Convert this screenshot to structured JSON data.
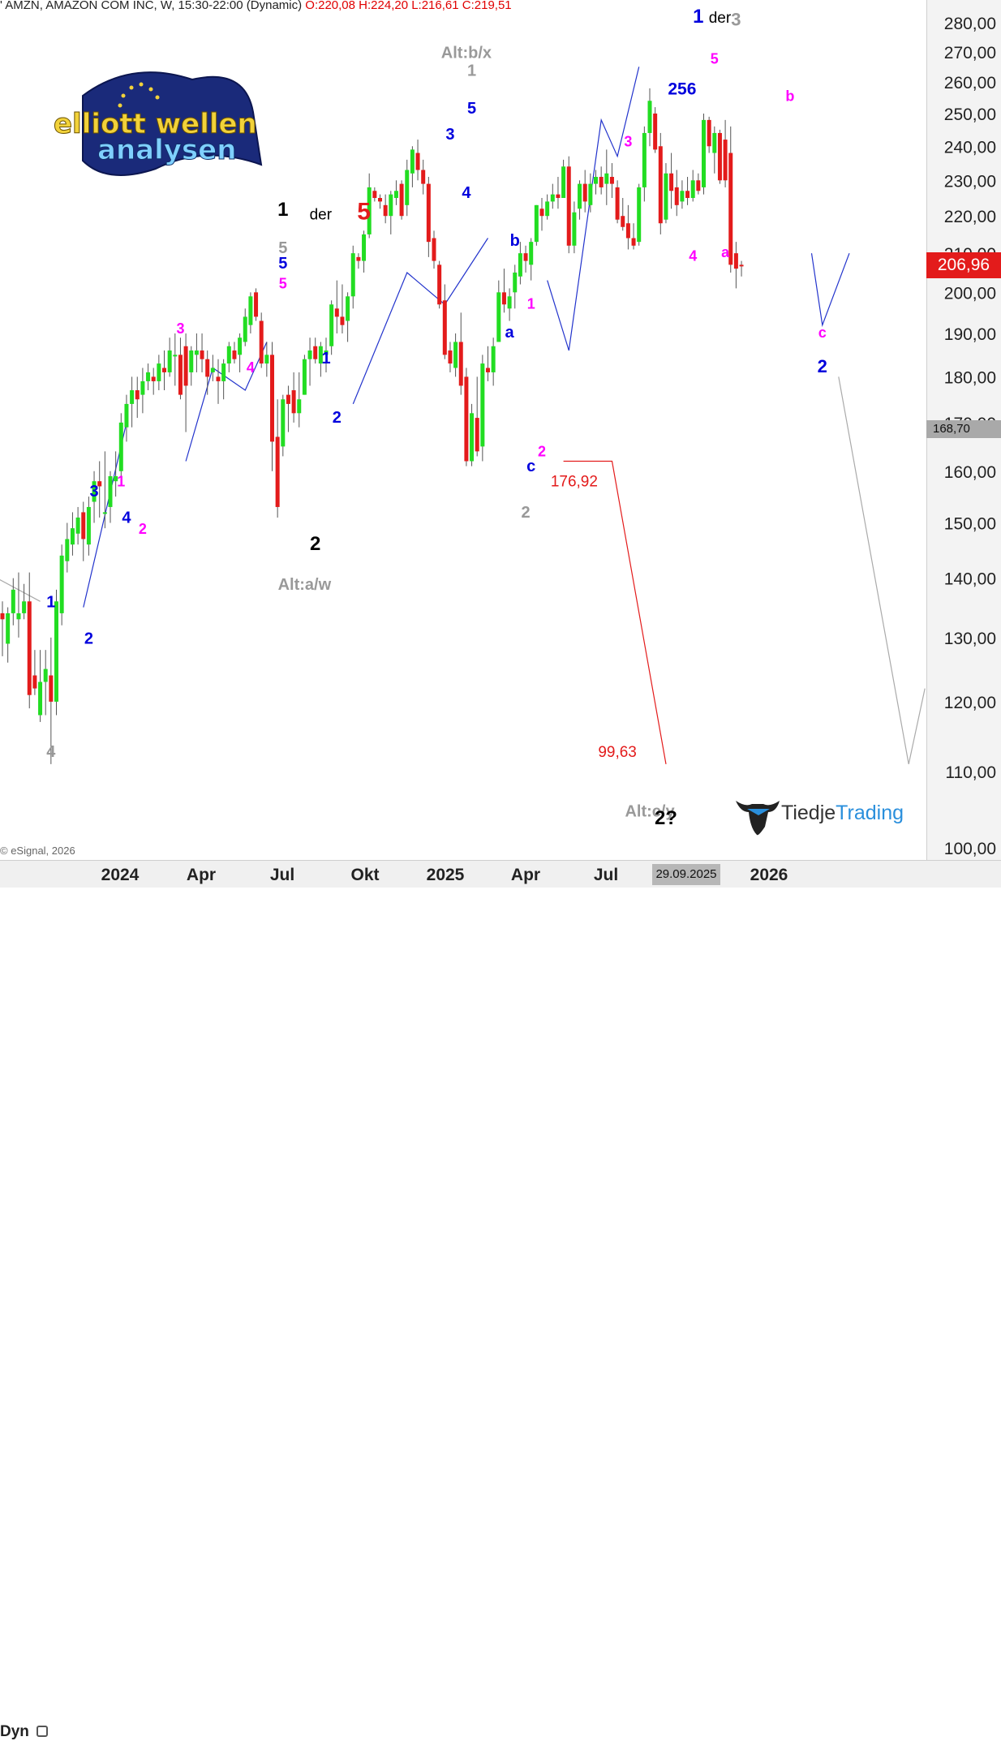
{
  "header": {
    "symbol_text": "' AMZN, AMAZON COM INC, W, 15:30-22:00 (Dynamic)",
    "ohlc_text": "O:220,08 H:224,20 L:216,61 C:219,51"
  },
  "copyright": "© eSignal, 2026",
  "time_panel": {
    "label": "Dyn"
  },
  "price_badge": "206,96",
  "grey_badge": "168,70",
  "date_badge": "29.09.2025",
  "logo_ew": {
    "line1": "elliott wellen",
    "line2": "analysen"
  },
  "logo_tt": {
    "part1": "Tiedje",
    "part2": "Trading"
  },
  "colors": {
    "up": "#22dd22",
    "down": "#e31b1b",
    "wick": "#555555",
    "blue": "#0000dd",
    "magenta": "#ff00ff",
    "grey": "#999999",
    "black": "#000000",
    "red": "#e31b1b",
    "path_blue": "#2233cc",
    "path_red": "#e31b1b",
    "path_grey": "#aaaaaa"
  },
  "chart_data": {
    "type": "candlestick",
    "symbol": "AMZN",
    "timeframe": "W",
    "y_axis": {
      "scale": "log",
      "ylim": [
        100,
        285
      ],
      "ticks": [
        "280,00",
        "270,00",
        "260,00",
        "250,00",
        "240,00",
        "230,00",
        "220,00",
        "210,00",
        "200,00",
        "190,00",
        "180,00",
        "170,00",
        "160,00",
        "150,00",
        "140,00",
        "130,00",
        "120,00",
        "110,00",
        "100,00"
      ]
    },
    "x_axis": {
      "ticks": [
        "2024",
        "Apr",
        "Jul",
        "Okt",
        "2025",
        "Apr",
        "Jul",
        "2026"
      ]
    },
    "candles": [
      {
        "o": 134,
        "h": 136,
        "l": 127,
        "c": 133
      },
      {
        "o": 129,
        "h": 135,
        "l": 126,
        "c": 134
      },
      {
        "o": 134,
        "h": 140,
        "l": 132,
        "c": 138
      },
      {
        "o": 133,
        "h": 141,
        "l": 130,
        "c": 134
      },
      {
        "o": 134,
        "h": 139,
        "l": 133,
        "c": 136
      },
      {
        "o": 136,
        "h": 141,
        "l": 119,
        "c": 121
      },
      {
        "o": 124,
        "h": 128,
        "l": 121,
        "c": 122
      },
      {
        "o": 118,
        "h": 128,
        "l": 117,
        "c": 123
      },
      {
        "o": 123,
        "h": 128,
        "l": 118,
        "c": 125
      },
      {
        "o": 124,
        "h": 130,
        "l": 111,
        "c": 120
      },
      {
        "o": 120,
        "h": 138,
        "l": 118,
        "c": 136
      },
      {
        "o": 134,
        "h": 146,
        "l": 132,
        "c": 144
      },
      {
        "o": 143,
        "h": 150,
        "l": 141,
        "c": 147
      },
      {
        "o": 146,
        "h": 152,
        "l": 144,
        "c": 149
      },
      {
        "o": 148,
        "h": 153,
        "l": 146,
        "c": 151
      },
      {
        "o": 152,
        "h": 154,
        "l": 143,
        "c": 147
      },
      {
        "o": 146,
        "h": 155,
        "l": 144,
        "c": 153
      },
      {
        "o": 154,
        "h": 160,
        "l": 150,
        "c": 158
      },
      {
        "o": 158,
        "h": 162,
        "l": 151,
        "c": 157
      },
      {
        "o": 152,
        "h": 164,
        "l": 149,
        "c": 152
      },
      {
        "o": 153,
        "h": 160,
        "l": 150,
        "c": 159
      },
      {
        "o": 158,
        "h": 164,
        "l": 155,
        "c": 159
      },
      {
        "o": 160,
        "h": 172,
        "l": 157,
        "c": 170
      },
      {
        "o": 169,
        "h": 176,
        "l": 166,
        "c": 174
      },
      {
        "o": 174,
        "h": 180,
        "l": 169,
        "c": 177
      },
      {
        "o": 177,
        "h": 180,
        "l": 171,
        "c": 175
      },
      {
        "o": 176,
        "h": 182,
        "l": 172,
        "c": 179
      },
      {
        "o": 179,
        "h": 183,
        "l": 177,
        "c": 181
      },
      {
        "o": 180,
        "h": 182,
        "l": 176,
        "c": 179
      },
      {
        "o": 179,
        "h": 185,
        "l": 177,
        "c": 183
      },
      {
        "o": 182,
        "h": 186,
        "l": 177,
        "c": 181
      },
      {
        "o": 181,
        "h": 189,
        "l": 180,
        "c": 186
      },
      {
        "o": 185,
        "h": 190,
        "l": 178,
        "c": 185
      },
      {
        "o": 185,
        "h": 189,
        "l": 175,
        "c": 176
      },
      {
        "o": 187,
        "h": 190,
        "l": 168,
        "c": 178
      },
      {
        "o": 181,
        "h": 187,
        "l": 178,
        "c": 186
      },
      {
        "o": 185,
        "h": 190,
        "l": 181,
        "c": 186
      },
      {
        "o": 186,
        "h": 190,
        "l": 181,
        "c": 184
      },
      {
        "o": 184,
        "h": 186,
        "l": 176,
        "c": 180
      },
      {
        "o": 181,
        "h": 185,
        "l": 179,
        "c": 182
      },
      {
        "o": 180,
        "h": 184,
        "l": 174,
        "c": 179
      },
      {
        "o": 179,
        "h": 184,
        "l": 175,
        "c": 183
      },
      {
        "o": 183,
        "h": 188,
        "l": 181,
        "c": 187
      },
      {
        "o": 186,
        "h": 188,
        "l": 183,
        "c": 184
      },
      {
        "o": 185,
        "h": 190,
        "l": 181,
        "c": 189
      },
      {
        "o": 188,
        "h": 196,
        "l": 187,
        "c": 194
      },
      {
        "o": 192,
        "h": 200,
        "l": 190,
        "c": 199
      },
      {
        "o": 200,
        "h": 201,
        "l": 193,
        "c": 194
      },
      {
        "o": 193,
        "h": 195,
        "l": 182,
        "c": 183
      },
      {
        "o": 183,
        "h": 188,
        "l": 180,
        "c": 185
      },
      {
        "o": 185,
        "h": 188,
        "l": 160,
        "c": 166
      },
      {
        "o": 167,
        "h": 175,
        "l": 151,
        "c": 153
      },
      {
        "o": 165,
        "h": 176,
        "l": 163,
        "c": 175
      },
      {
        "o": 176,
        "h": 178,
        "l": 168,
        "c": 174
      },
      {
        "o": 177,
        "h": 181,
        "l": 170,
        "c": 172
      },
      {
        "o": 172,
        "h": 181,
        "l": 169,
        "c": 175
      },
      {
        "o": 176,
        "h": 185,
        "l": 176,
        "c": 184
      },
      {
        "o": 184,
        "h": 189,
        "l": 178,
        "c": 186
      },
      {
        "o": 187,
        "h": 189,
        "l": 183,
        "c": 184
      },
      {
        "o": 183,
        "h": 188,
        "l": 180,
        "c": 187
      },
      {
        "o": 185,
        "h": 189,
        "l": 181,
        "c": 186
      },
      {
        "o": 187,
        "h": 198,
        "l": 185,
        "c": 197
      },
      {
        "o": 196,
        "h": 203,
        "l": 190,
        "c": 194
      },
      {
        "o": 194,
        "h": 202,
        "l": 190,
        "c": 192
      },
      {
        "o": 193,
        "h": 200,
        "l": 188,
        "c": 199
      },
      {
        "o": 199,
        "h": 212,
        "l": 196,
        "c": 210
      },
      {
        "o": 209,
        "h": 210,
        "l": 206,
        "c": 208
      },
      {
        "o": 208,
        "h": 216,
        "l": 205,
        "c": 215
      },
      {
        "o": 215,
        "h": 232,
        "l": 214,
        "c": 228
      },
      {
        "o": 227,
        "h": 228,
        "l": 224,
        "c": 225
      },
      {
        "o": 225,
        "h": 226,
        "l": 222,
        "c": 224
      },
      {
        "o": 223,
        "h": 226,
        "l": 218,
        "c": 220
      },
      {
        "o": 220,
        "h": 227,
        "l": 215,
        "c": 226
      },
      {
        "o": 225,
        "h": 230,
        "l": 223,
        "c": 227
      },
      {
        "o": 229,
        "h": 230,
        "l": 219,
        "c": 220
      },
      {
        "o": 223,
        "h": 236,
        "l": 220,
        "c": 233
      },
      {
        "o": 232,
        "h": 240,
        "l": 228,
        "c": 239
      },
      {
        "o": 238,
        "h": 242,
        "l": 230,
        "c": 233
      },
      {
        "o": 233,
        "h": 236,
        "l": 226,
        "c": 229
      },
      {
        "o": 229,
        "h": 231,
        "l": 209,
        "c": 213
      },
      {
        "o": 214,
        "h": 216,
        "l": 206,
        "c": 208
      },
      {
        "o": 207,
        "h": 208,
        "l": 196,
        "c": 197
      },
      {
        "o": 198,
        "h": 202,
        "l": 184,
        "c": 185
      },
      {
        "o": 186,
        "h": 188,
        "l": 181,
        "c": 183
      },
      {
        "o": 182,
        "h": 190,
        "l": 180,
        "c": 188
      },
      {
        "o": 188,
        "h": 195,
        "l": 176,
        "c": 178
      },
      {
        "o": 180,
        "h": 182,
        "l": 161,
        "c": 162
      },
      {
        "o": 162,
        "h": 174,
        "l": 161,
        "c": 172
      },
      {
        "o": 171,
        "h": 180,
        "l": 163,
        "c": 164
      },
      {
        "o": 165,
        "h": 185,
        "l": 162,
        "c": 183
      },
      {
        "o": 182,
        "h": 187,
        "l": 179,
        "c": 181
      },
      {
        "o": 181,
        "h": 189,
        "l": 178,
        "c": 187
      },
      {
        "o": 188,
        "h": 203,
        "l": 188,
        "c": 200
      },
      {
        "o": 200,
        "h": 206,
        "l": 195,
        "c": 197
      },
      {
        "o": 196,
        "h": 201,
        "l": 193,
        "c": 199
      },
      {
        "o": 200,
        "h": 207,
        "l": 196,
        "c": 205
      },
      {
        "o": 204,
        "h": 213,
        "l": 202,
        "c": 210
      },
      {
        "o": 210,
        "h": 212,
        "l": 205,
        "c": 208
      },
      {
        "o": 207,
        "h": 214,
        "l": 203,
        "c": 213
      },
      {
        "o": 213,
        "h": 223,
        "l": 212,
        "c": 223
      },
      {
        "o": 222,
        "h": 225,
        "l": 216,
        "c": 220
      },
      {
        "o": 220,
        "h": 226,
        "l": 219,
        "c": 224
      },
      {
        "o": 224,
        "h": 229,
        "l": 222,
        "c": 226
      },
      {
        "o": 226,
        "h": 231,
        "l": 222,
        "c": 225
      },
      {
        "o": 225,
        "h": 236,
        "l": 225,
        "c": 234
      },
      {
        "o": 234,
        "h": 237,
        "l": 210,
        "c": 212
      },
      {
        "o": 212,
        "h": 224,
        "l": 210,
        "c": 221
      },
      {
        "o": 222,
        "h": 230,
        "l": 219,
        "c": 229
      },
      {
        "o": 229,
        "h": 233,
        "l": 221,
        "c": 224
      },
      {
        "o": 223,
        "h": 232,
        "l": 221,
        "c": 229
      },
      {
        "o": 229,
        "h": 233,
        "l": 226,
        "c": 231
      },
      {
        "o": 231,
        "h": 234,
        "l": 226,
        "c": 228
      },
      {
        "o": 229,
        "h": 239,
        "l": 223,
        "c": 232
      },
      {
        "o": 231,
        "h": 235,
        "l": 225,
        "c": 229
      },
      {
        "o": 228,
        "h": 230,
        "l": 218,
        "c": 219
      },
      {
        "o": 220,
        "h": 225,
        "l": 216,
        "c": 217
      },
      {
        "o": 218,
        "h": 223,
        "l": 211,
        "c": 214
      },
      {
        "o": 214,
        "h": 218,
        "l": 211,
        "c": 212
      },
      {
        "o": 213,
        "h": 229,
        "l": 212,
        "c": 228
      },
      {
        "o": 228,
        "h": 246,
        "l": 224,
        "c": 244
      },
      {
        "o": 244,
        "h": 258,
        "l": 240,
        "c": 254
      },
      {
        "o": 250,
        "h": 252,
        "l": 238,
        "c": 239
      },
      {
        "o": 240,
        "h": 244,
        "l": 215,
        "c": 218
      },
      {
        "o": 219,
        "h": 235,
        "l": 218,
        "c": 232
      },
      {
        "o": 232,
        "h": 238,
        "l": 222,
        "c": 227
      },
      {
        "o": 228,
        "h": 233,
        "l": 220,
        "c": 223
      },
      {
        "o": 224,
        "h": 230,
        "l": 222,
        "c": 227
      },
      {
        "o": 227,
        "h": 231,
        "l": 223,
        "c": 225
      },
      {
        "o": 225,
        "h": 233,
        "l": 224,
        "c": 230
      },
      {
        "o": 230,
        "h": 232,
        "l": 226,
        "c": 227
      },
      {
        "o": 228,
        "h": 250,
        "l": 226,
        "c": 248
      },
      {
        "o": 248,
        "h": 249,
        "l": 238,
        "c": 240
      },
      {
        "o": 238,
        "h": 246,
        "l": 232,
        "c": 244
      },
      {
        "o": 244,
        "h": 245,
        "l": 229,
        "c": 230
      },
      {
        "o": 242,
        "h": 248,
        "l": 228,
        "c": 230
      },
      {
        "o": 238,
        "h": 246,
        "l": 205,
        "c": 207
      },
      {
        "o": 210,
        "h": 213,
        "l": 201,
        "c": 206
      },
      {
        "o": 207,
        "h": 208,
        "l": 204,
        "c": 206.96
      }
    ],
    "last_price": 206.96,
    "levels": [
      168.7,
      176.92,
      99.63
    ],
    "annotations": [
      {
        "text": "Alt:b/x"
      },
      {
        "text": "Alt:a/w"
      },
      {
        "text": "Alt:c/y"
      },
      {
        "text": "1"
      },
      {
        "text": "der"
      },
      {
        "text": "5"
      },
      {
        "text": "1"
      },
      {
        "text": "der"
      },
      {
        "text": "3"
      },
      {
        "text": "256"
      },
      {
        "text": "176,92"
      },
      {
        "text": "99,63"
      },
      {
        "text": "2?"
      }
    ]
  }
}
